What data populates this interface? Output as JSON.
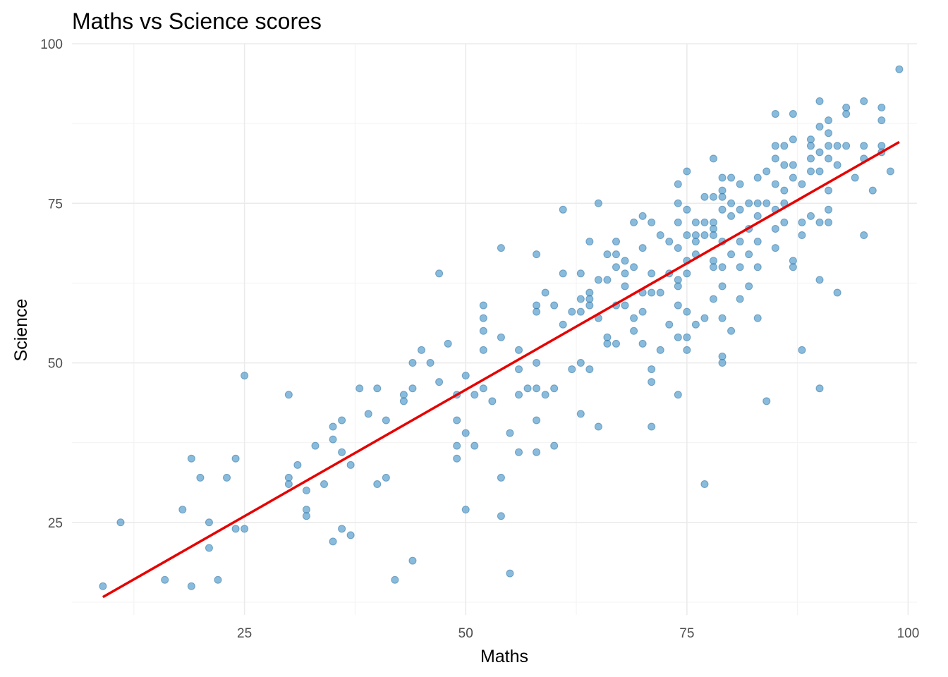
{
  "chart_data": {
    "type": "scatter",
    "title": "Maths vs Science scores",
    "xlabel": "Maths",
    "ylabel": "Science",
    "xlim": [
      5.5,
      101
    ],
    "ylim": [
      10.5,
      100
    ],
    "x_ticks": [
      25,
      50,
      75,
      100
    ],
    "y_ticks": [
      25,
      50,
      75,
      100
    ],
    "x_tick_labels": [
      "25",
      "50",
      "75",
      "100"
    ],
    "y_tick_labels": [
      "25",
      "50",
      "75",
      "100"
    ],
    "x_minor": [
      12.5,
      37.5,
      62.5,
      87.5
    ],
    "y_minor": [
      12.5,
      37.5,
      62.5,
      87.5
    ],
    "grid": true,
    "point_color": "#3a8ec4",
    "line_color": "#e60000",
    "trend_line": {
      "x": [
        9,
        99
      ],
      "y": [
        13.3,
        84.6
      ]
    },
    "points": [
      [
        9,
        15
      ],
      [
        11,
        25
      ],
      [
        16,
        16
      ],
      [
        18,
        27
      ],
      [
        19,
        35
      ],
      [
        19,
        15
      ],
      [
        20,
        32
      ],
      [
        21,
        25
      ],
      [
        21,
        21
      ],
      [
        22,
        16
      ],
      [
        23,
        32
      ],
      [
        24,
        35
      ],
      [
        24,
        24
      ],
      [
        25,
        48
      ],
      [
        25,
        24
      ],
      [
        30,
        45
      ],
      [
        30,
        32
      ],
      [
        30,
        31
      ],
      [
        31,
        34
      ],
      [
        32,
        30
      ],
      [
        32,
        27
      ],
      [
        32,
        26
      ],
      [
        33,
        37
      ],
      [
        34,
        31
      ],
      [
        35,
        40
      ],
      [
        35,
        38
      ],
      [
        35,
        22
      ],
      [
        36,
        41
      ],
      [
        36,
        36
      ],
      [
        36,
        24
      ],
      [
        37,
        34
      ],
      [
        37,
        23
      ],
      [
        38,
        46
      ],
      [
        39,
        42
      ],
      [
        40,
        46
      ],
      [
        40,
        31
      ],
      [
        41,
        41
      ],
      [
        41,
        32
      ],
      [
        42,
        16
      ],
      [
        43,
        45
      ],
      [
        43,
        44
      ],
      [
        44,
        50
      ],
      [
        44,
        46
      ],
      [
        44,
        19
      ],
      [
        45,
        52
      ],
      [
        46,
        50
      ],
      [
        47,
        64
      ],
      [
        47,
        47
      ],
      [
        48,
        53
      ],
      [
        49,
        45
      ],
      [
        49,
        41
      ],
      [
        49,
        37
      ],
      [
        49,
        35
      ],
      [
        50,
        48
      ],
      [
        50,
        39
      ],
      [
        50,
        27
      ],
      [
        51,
        45
      ],
      [
        51,
        37
      ],
      [
        52,
        59
      ],
      [
        52,
        57
      ],
      [
        52,
        55
      ],
      [
        52,
        52
      ],
      [
        52,
        46
      ],
      [
        53,
        44
      ],
      [
        54,
        68
      ],
      [
        54,
        54
      ],
      [
        54,
        32
      ],
      [
        54,
        26
      ],
      [
        55,
        39
      ],
      [
        55,
        17
      ],
      [
        56,
        52
      ],
      [
        56,
        49
      ],
      [
        56,
        45
      ],
      [
        56,
        36
      ],
      [
        57,
        46
      ],
      [
        58,
        67
      ],
      [
        58,
        59
      ],
      [
        58,
        58
      ],
      [
        58,
        50
      ],
      [
        58,
        46
      ],
      [
        58,
        41
      ],
      [
        58,
        36
      ],
      [
        59,
        61
      ],
      [
        59,
        45
      ],
      [
        60,
        59
      ],
      [
        60,
        46
      ],
      [
        60,
        37
      ],
      [
        61,
        74
      ],
      [
        61,
        64
      ],
      [
        61,
        56
      ],
      [
        62,
        58
      ],
      [
        62,
        49
      ],
      [
        63,
        64
      ],
      [
        63,
        60
      ],
      [
        63,
        58
      ],
      [
        63,
        50
      ],
      [
        63,
        42
      ],
      [
        64,
        69
      ],
      [
        64,
        61
      ],
      [
        64,
        60
      ],
      [
        64,
        59
      ],
      [
        64,
        49
      ],
      [
        65,
        75
      ],
      [
        65,
        63
      ],
      [
        65,
        57
      ],
      [
        65,
        40
      ],
      [
        66,
        67
      ],
      [
        66,
        63
      ],
      [
        66,
        54
      ],
      [
        66,
        53
      ],
      [
        67,
        69
      ],
      [
        67,
        67
      ],
      [
        67,
        65
      ],
      [
        67,
        59
      ],
      [
        67,
        53
      ],
      [
        68,
        66
      ],
      [
        68,
        64
      ],
      [
        68,
        62
      ],
      [
        68,
        59
      ],
      [
        69,
        72
      ],
      [
        69,
        65
      ],
      [
        69,
        57
      ],
      [
        69,
        55
      ],
      [
        70,
        73
      ],
      [
        70,
        68
      ],
      [
        70,
        61
      ],
      [
        70,
        58
      ],
      [
        70,
        53
      ],
      [
        71,
        72
      ],
      [
        71,
        64
      ],
      [
        71,
        61
      ],
      [
        71,
        49
      ],
      [
        71,
        47
      ],
      [
        71,
        40
      ],
      [
        72,
        70
      ],
      [
        72,
        61
      ],
      [
        72,
        52
      ],
      [
        73,
        69
      ],
      [
        73,
        64
      ],
      [
        73,
        56
      ],
      [
        74,
        78
      ],
      [
        74,
        75
      ],
      [
        74,
        72
      ],
      [
        74,
        68
      ],
      [
        74,
        63
      ],
      [
        74,
        62
      ],
      [
        74,
        59
      ],
      [
        74,
        54
      ],
      [
        74,
        45
      ],
      [
        75,
        80
      ],
      [
        75,
        74
      ],
      [
        75,
        70
      ],
      [
        75,
        66
      ],
      [
        75,
        64
      ],
      [
        75,
        58
      ],
      [
        75,
        54
      ],
      [
        75,
        52
      ],
      [
        76,
        72
      ],
      [
        76,
        70
      ],
      [
        76,
        69
      ],
      [
        76,
        67
      ],
      [
        76,
        56
      ],
      [
        77,
        76
      ],
      [
        77,
        72
      ],
      [
        77,
        70
      ],
      [
        77,
        57
      ],
      [
        77,
        31
      ],
      [
        78,
        82
      ],
      [
        78,
        76
      ],
      [
        78,
        72
      ],
      [
        78,
        71
      ],
      [
        78,
        70
      ],
      [
        78,
        66
      ],
      [
        78,
        65
      ],
      [
        78,
        60
      ],
      [
        79,
        79
      ],
      [
        79,
        77
      ],
      [
        79,
        76
      ],
      [
        79,
        74
      ],
      [
        79,
        69
      ],
      [
        79,
        65
      ],
      [
        79,
        62
      ],
      [
        79,
        57
      ],
      [
        79,
        51
      ],
      [
        79,
        50
      ],
      [
        80,
        79
      ],
      [
        80,
        75
      ],
      [
        80,
        73
      ],
      [
        80,
        67
      ],
      [
        80,
        55
      ],
      [
        81,
        78
      ],
      [
        81,
        74
      ],
      [
        81,
        69
      ],
      [
        81,
        65
      ],
      [
        81,
        60
      ],
      [
        82,
        75
      ],
      [
        82,
        71
      ],
      [
        82,
        67
      ],
      [
        82,
        62
      ],
      [
        83,
        79
      ],
      [
        83,
        75
      ],
      [
        83,
        73
      ],
      [
        83,
        69
      ],
      [
        83,
        65
      ],
      [
        83,
        57
      ],
      [
        84,
        80
      ],
      [
        84,
        75
      ],
      [
        84,
        44
      ],
      [
        85,
        89
      ],
      [
        85,
        84
      ],
      [
        85,
        82
      ],
      [
        85,
        78
      ],
      [
        85,
        74
      ],
      [
        85,
        71
      ],
      [
        85,
        68
      ],
      [
        86,
        84
      ],
      [
        86,
        81
      ],
      [
        86,
        77
      ],
      [
        86,
        75
      ],
      [
        86,
        72
      ],
      [
        87,
        89
      ],
      [
        87,
        85
      ],
      [
        87,
        81
      ],
      [
        87,
        79
      ],
      [
        87,
        66
      ],
      [
        87,
        65
      ],
      [
        88,
        78
      ],
      [
        88,
        72
      ],
      [
        88,
        70
      ],
      [
        88,
        52
      ],
      [
        89,
        85
      ],
      [
        89,
        84
      ],
      [
        89,
        82
      ],
      [
        89,
        80
      ],
      [
        89,
        73
      ],
      [
        90,
        91
      ],
      [
        90,
        87
      ],
      [
        90,
        83
      ],
      [
        90,
        80
      ],
      [
        90,
        72
      ],
      [
        90,
        63
      ],
      [
        90,
        46
      ],
      [
        91,
        88
      ],
      [
        91,
        86
      ],
      [
        91,
        84
      ],
      [
        91,
        82
      ],
      [
        91,
        77
      ],
      [
        91,
        74
      ],
      [
        91,
        72
      ],
      [
        92,
        84
      ],
      [
        92,
        81
      ],
      [
        92,
        61
      ],
      [
        93,
        90
      ],
      [
        93,
        89
      ],
      [
        93,
        84
      ],
      [
        94,
        79
      ],
      [
        95,
        91
      ],
      [
        95,
        84
      ],
      [
        95,
        82
      ],
      [
        95,
        70
      ],
      [
        96,
        77
      ],
      [
        97,
        90
      ],
      [
        97,
        88
      ],
      [
        97,
        84
      ],
      [
        97,
        83
      ],
      [
        98,
        80
      ],
      [
        99,
        96
      ]
    ]
  }
}
